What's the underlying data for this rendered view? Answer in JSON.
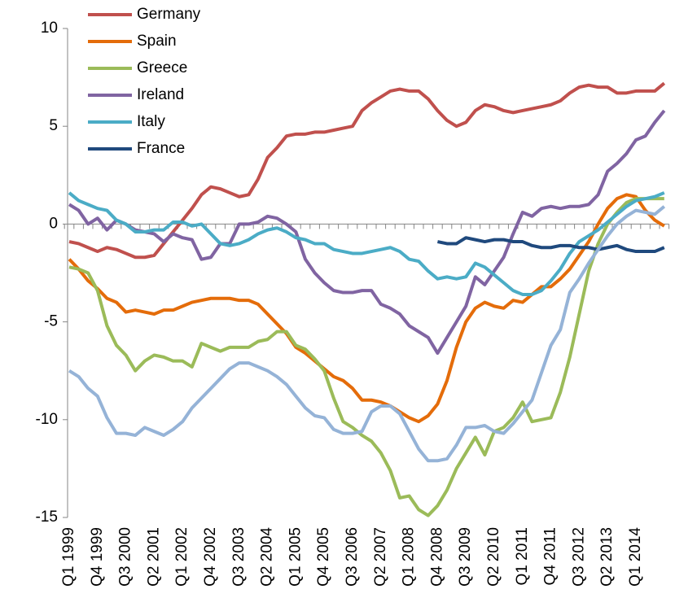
{
  "chart_data": {
    "type": "line",
    "categories": [
      "Q1 1999",
      null,
      null,
      "Q4 1999",
      null,
      null,
      "Q3 2000",
      null,
      null,
      "Q2 2001",
      null,
      null,
      "Q1 2002",
      null,
      null,
      "Q4 2002",
      null,
      null,
      "Q3 2003",
      null,
      null,
      "Q2 2004",
      null,
      null,
      "Q1 2005",
      null,
      null,
      "Q4 2005",
      null,
      null,
      "Q3 2006",
      null,
      null,
      "Q2 2007",
      null,
      null,
      "Q1 2008",
      null,
      null,
      "Q4 2008",
      null,
      null,
      "Q3 2009",
      null,
      null,
      "Q2 2010",
      null,
      null,
      "Q1 2011",
      null,
      null,
      "Q4 2011",
      null,
      null,
      "Q3 2012",
      null,
      null,
      "Q2 2013",
      null,
      null,
      "Q1 2014",
      null,
      null,
      null
    ],
    "ylim": [
      -15,
      10
    ],
    "yticks": [
      -15,
      -10,
      -5,
      0,
      5,
      10
    ],
    "legend": "top-left",
    "series": [
      {
        "name": "Germany",
        "color": "#c0504d",
        "values": [
          -0.9,
          -1.0,
          -1.2,
          -1.4,
          -1.2,
          -1.3,
          -1.5,
          -1.7,
          -1.7,
          -1.6,
          -1.0,
          -0.4,
          0.2,
          0.8,
          1.5,
          1.9,
          1.8,
          1.6,
          1.4,
          1.5,
          2.3,
          3.4,
          3.9,
          4.5,
          4.6,
          4.6,
          4.7,
          4.7,
          4.8,
          4.9,
          5.0,
          5.8,
          6.2,
          6.5,
          6.8,
          6.9,
          6.8,
          6.8,
          6.4,
          5.8,
          5.3,
          5.0,
          5.2,
          5.8,
          6.1,
          6.0,
          5.8,
          5.7,
          5.8,
          5.9,
          6.0,
          6.1,
          6.3,
          6.7,
          7.0,
          7.1,
          7.0,
          7.0,
          6.7,
          6.7,
          6.8,
          6.8,
          6.8,
          7.2
        ]
      },
      {
        "name": "Spain",
        "color": "#e46c0a",
        "values": [
          -1.8,
          -2.3,
          -2.9,
          -3.3,
          -3.8,
          -4.0,
          -4.5,
          -4.4,
          -4.5,
          -4.6,
          -4.4,
          -4.4,
          -4.2,
          -4.0,
          -3.9,
          -3.8,
          -3.8,
          -3.8,
          -3.9,
          -3.9,
          -4.1,
          -4.6,
          -5.1,
          -5.6,
          -6.3,
          -6.6,
          -7.0,
          -7.4,
          -7.8,
          -8.0,
          -8.4,
          -9.0,
          -9.0,
          -9.1,
          -9.3,
          -9.6,
          -9.9,
          -10.1,
          -9.8,
          -9.2,
          -8.0,
          -6.3,
          -5.0,
          -4.3,
          -4.0,
          -4.2,
          -4.3,
          -3.9,
          -4.0,
          -3.6,
          -3.2,
          -3.2,
          -2.8,
          -2.3,
          -1.6,
          -0.9,
          0.0,
          0.8,
          1.3,
          1.5,
          1.4,
          0.7,
          0.2,
          -0.1
        ]
      },
      {
        "name": "Greece",
        "color": "#9bbb59",
        "values": [
          -2.2,
          -2.3,
          -2.5,
          -3.4,
          -5.2,
          -6.2,
          -6.7,
          -7.5,
          -7.0,
          -6.7,
          -6.8,
          -7.0,
          -7.0,
          -7.3,
          -6.1,
          -6.3,
          -6.5,
          -6.3,
          -6.3,
          -6.3,
          -6.0,
          -5.9,
          -5.5,
          -5.5,
          -6.2,
          -6.4,
          -6.9,
          -7.5,
          -8.9,
          -10.1,
          -10.4,
          -10.8,
          -11.1,
          -11.7,
          -12.6,
          -14.0,
          -13.9,
          -14.6,
          -14.9,
          -14.4,
          -13.6,
          -12.5,
          -11.7,
          -10.9,
          -11.8,
          -10.6,
          -10.4,
          -9.9,
          -9.1,
          -10.1,
          -10.0,
          -9.9,
          -8.6,
          -6.8,
          -4.6,
          -2.4,
          -1.0,
          0.0,
          0.6,
          1.1,
          1.3,
          1.3,
          1.3,
          1.3
        ]
      },
      {
        "name": "Ireland",
        "color": "#8064a2",
        "values": [
          1.0,
          0.7,
          0.0,
          0.3,
          -0.3,
          0.2,
          0.0,
          -0.3,
          -0.4,
          -0.5,
          -0.9,
          -0.5,
          -0.7,
          -0.8,
          -1.8,
          -1.7,
          -1.0,
          -1.0,
          0.0,
          0.0,
          0.1,
          0.4,
          0.3,
          0.0,
          -0.4,
          -1.8,
          -2.5,
          -3.0,
          -3.4,
          -3.5,
          -3.5,
          -3.4,
          -3.4,
          -4.1,
          -4.3,
          -4.6,
          -5.2,
          -5.5,
          -5.8,
          -6.6,
          -5.8,
          -5.0,
          -4.2,
          -2.7,
          -3.1,
          -2.4,
          -1.7,
          -0.5,
          0.6,
          0.4,
          0.8,
          0.9,
          0.8,
          0.9,
          0.9,
          1.0,
          1.5,
          2.7,
          3.1,
          3.6,
          4.3,
          4.5,
          5.2,
          5.8
        ]
      },
      {
        "name": "Italy",
        "color": "#4bacc6",
        "values": [
          1.6,
          1.2,
          1.0,
          0.8,
          0.7,
          0.2,
          0.0,
          -0.4,
          -0.4,
          -0.3,
          -0.3,
          0.1,
          0.1,
          -0.1,
          0.0,
          -0.5,
          -1.0,
          -1.1,
          -1.0,
          -0.8,
          -0.5,
          -0.3,
          -0.2,
          -0.4,
          -0.7,
          -0.8,
          -1.0,
          -1.0,
          -1.3,
          -1.4,
          -1.5,
          -1.5,
          -1.4,
          -1.3,
          -1.2,
          -1.4,
          -1.8,
          -1.9,
          -2.4,
          -2.8,
          -2.7,
          -2.8,
          -2.7,
          -2.0,
          -2.2,
          -2.6,
          -3.0,
          -3.4,
          -3.6,
          -3.6,
          -3.4,
          -2.9,
          -2.3,
          -1.5,
          -0.9,
          -0.6,
          -0.3,
          0.1,
          0.5,
          0.9,
          1.2,
          1.3,
          1.4,
          1.6
        ]
      },
      {
        "name": "France",
        "color": "#1f497d",
        "values": [
          null,
          null,
          null,
          null,
          null,
          null,
          null,
          null,
          null,
          null,
          null,
          null,
          null,
          null,
          null,
          null,
          null,
          null,
          null,
          null,
          null,
          null,
          null,
          null,
          null,
          null,
          null,
          null,
          null,
          null,
          null,
          null,
          null,
          null,
          null,
          null,
          null,
          null,
          null,
          -0.9,
          -1.0,
          -1.0,
          -0.7,
          -0.8,
          -0.9,
          -0.8,
          -0.8,
          -0.9,
          -0.9,
          -1.1,
          -1.2,
          -1.2,
          -1.1,
          -1.1,
          -1.2,
          -1.2,
          -1.3,
          -1.2,
          -1.1,
          -1.3,
          -1.4,
          -1.4,
          -1.4,
          -1.2
        ]
      },
      {
        "color": "#95b3d7",
        "values": [
          -7.5,
          -7.8,
          -8.4,
          -8.8,
          -9.9,
          -10.7,
          -10.7,
          -10.8,
          -10.4,
          -10.6,
          -10.8,
          -10.5,
          -10.1,
          -9.4,
          -8.9,
          -8.4,
          -7.9,
          -7.4,
          -7.1,
          -7.1,
          -7.3,
          -7.5,
          -7.8,
          -8.2,
          -8.8,
          -9.4,
          -9.8,
          -9.9,
          -10.5,
          -10.7,
          -10.7,
          -10.6,
          -9.6,
          -9.3,
          -9.3,
          -9.7,
          -10.6,
          -11.5,
          -12.1,
          -12.1,
          -12.0,
          -11.3,
          -10.4,
          -10.4,
          -10.3,
          -10.6,
          -10.7,
          -10.2,
          -9.6,
          -9.0,
          -7.6,
          -6.2,
          -5.4,
          -3.5,
          -2.8,
          -2.0,
          -1.3,
          -0.6,
          0.0,
          0.4,
          0.7,
          0.6,
          0.5,
          0.9
        ]
      }
    ]
  }
}
